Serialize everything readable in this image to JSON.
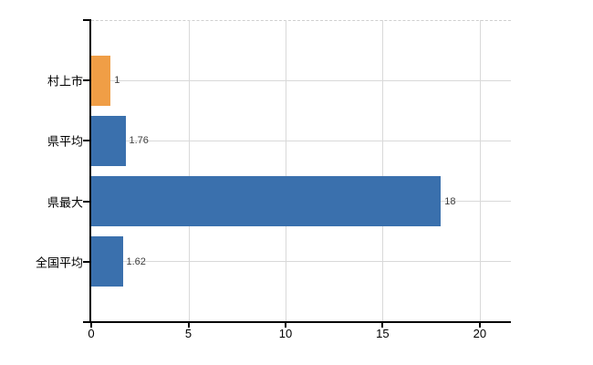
{
  "chart_data": {
    "type": "bar",
    "orientation": "horizontal",
    "title": "",
    "xlabel": "",
    "ylabel": "",
    "categories": [
      "村上市",
      "県平均",
      "県最大",
      "全国平均"
    ],
    "values": [
      1,
      1.76,
      18,
      1.62
    ],
    "value_labels": [
      "1",
      "1.76",
      "18",
      "1.62"
    ],
    "bar_colors": [
      "#f09e46",
      "#3a70ad",
      "#3a70ad",
      "#3a70ad"
    ],
    "x_tick_labels": [
      "0",
      "5",
      "10",
      "15",
      "20"
    ],
    "x_tick_values": [
      0,
      5,
      10,
      15,
      20
    ],
    "xlim": [
      0,
      21.6
    ],
    "grid": true,
    "legend_position": "none"
  },
  "colors": {
    "background": "#ffffff",
    "gridline": "#d9d9d9",
    "top_border_dashed": "#cfcfcf",
    "axis": "#000000",
    "value_label": "#3f3f3f",
    "tick_label": "#000000",
    "orange_bar": "#f09e46",
    "blue_bar": "#3a70ad"
  }
}
